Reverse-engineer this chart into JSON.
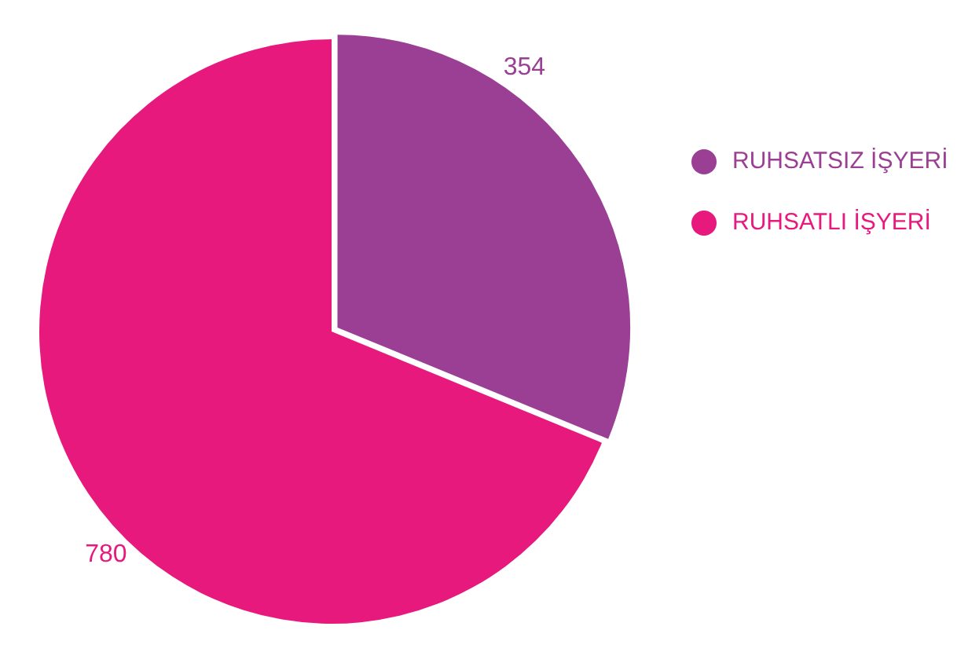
{
  "chart_data": {
    "type": "pie",
    "categories": [
      "RUHSATSIZ İŞYERİ",
      "RUHSATLI İŞYERİ"
    ],
    "values": [
      354,
      780
    ],
    "colors": [
      "#9b3f94",
      "#e8197d"
    ],
    "data_labels": true,
    "legend": "right"
  }
}
